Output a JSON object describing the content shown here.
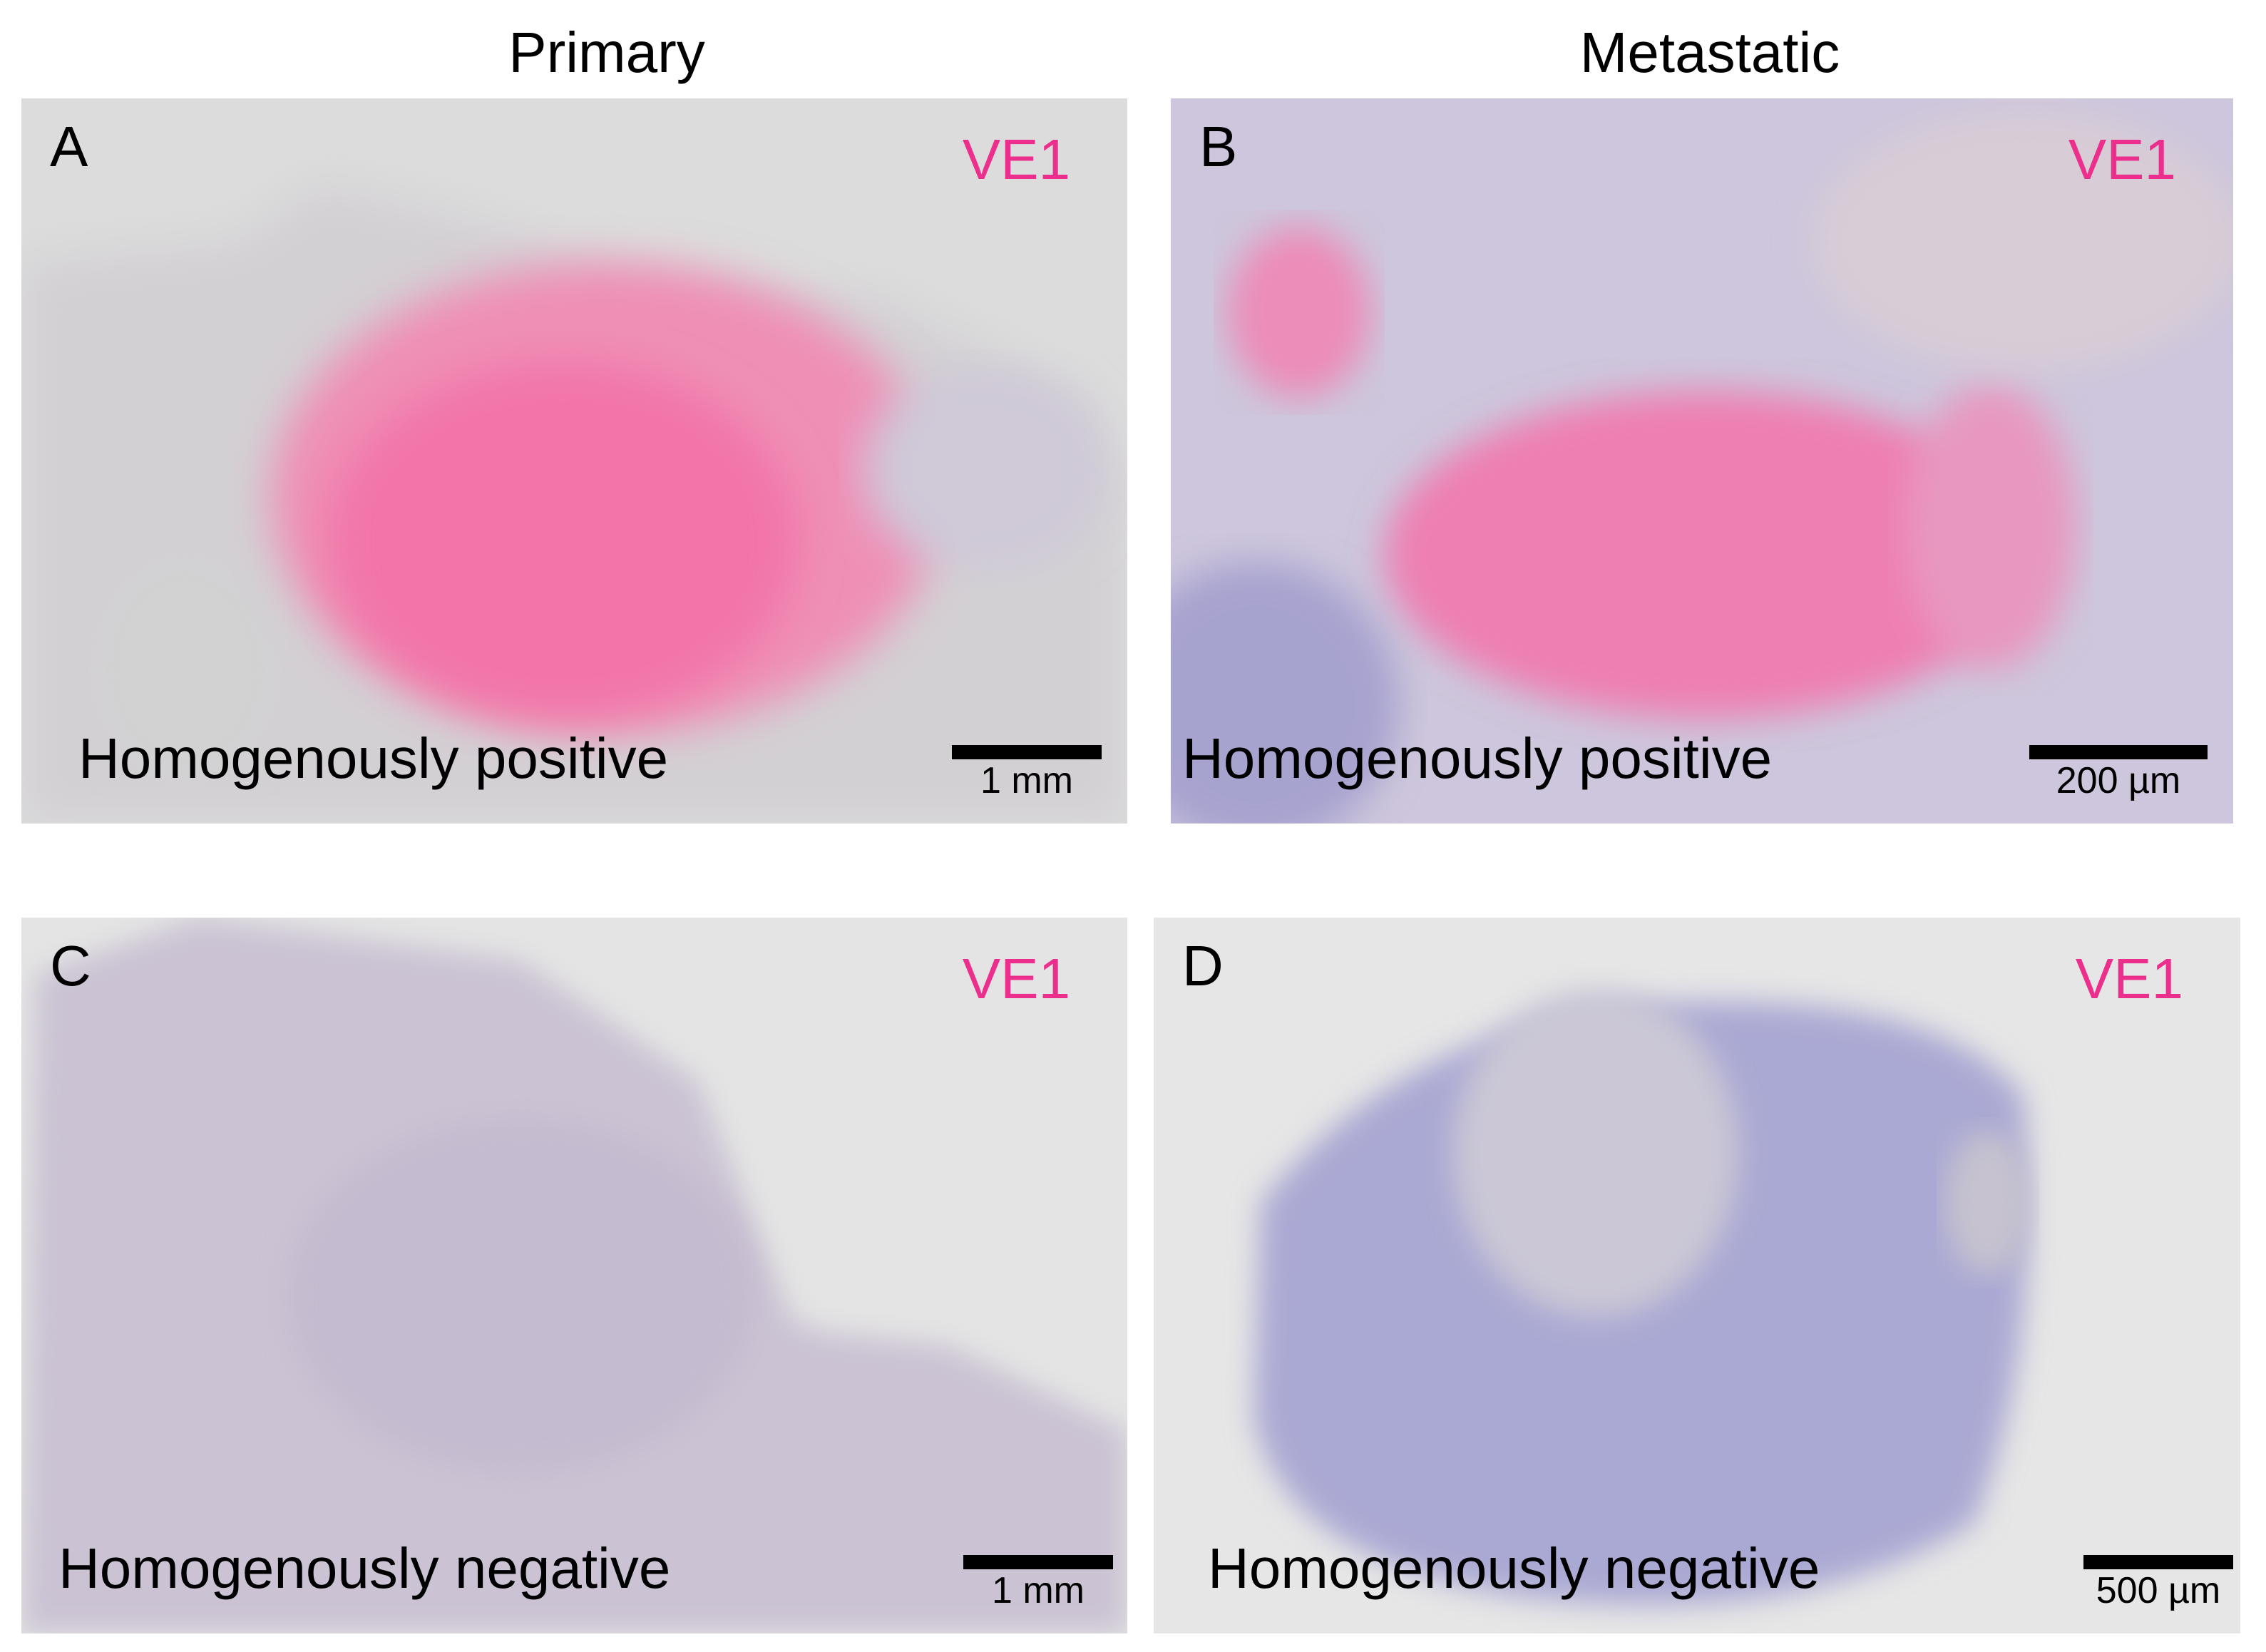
{
  "columns": [
    "Primary",
    "Metastatic"
  ],
  "panels": [
    {
      "letter": "A",
      "stain": "VE1",
      "caption": "Homogenously positive",
      "scale_bar": "1 mm"
    },
    {
      "letter": "B",
      "stain": "VE1",
      "caption": "Homogenously positive",
      "scale_bar": "200 µm"
    },
    {
      "letter": "C",
      "stain": "VE1",
      "caption": "Homogenously negative",
      "scale_bar": "1 mm"
    },
    {
      "letter": "D",
      "stain": "VE1",
      "caption": "Homogenously negative",
      "scale_bar": "500 µm"
    }
  ]
}
